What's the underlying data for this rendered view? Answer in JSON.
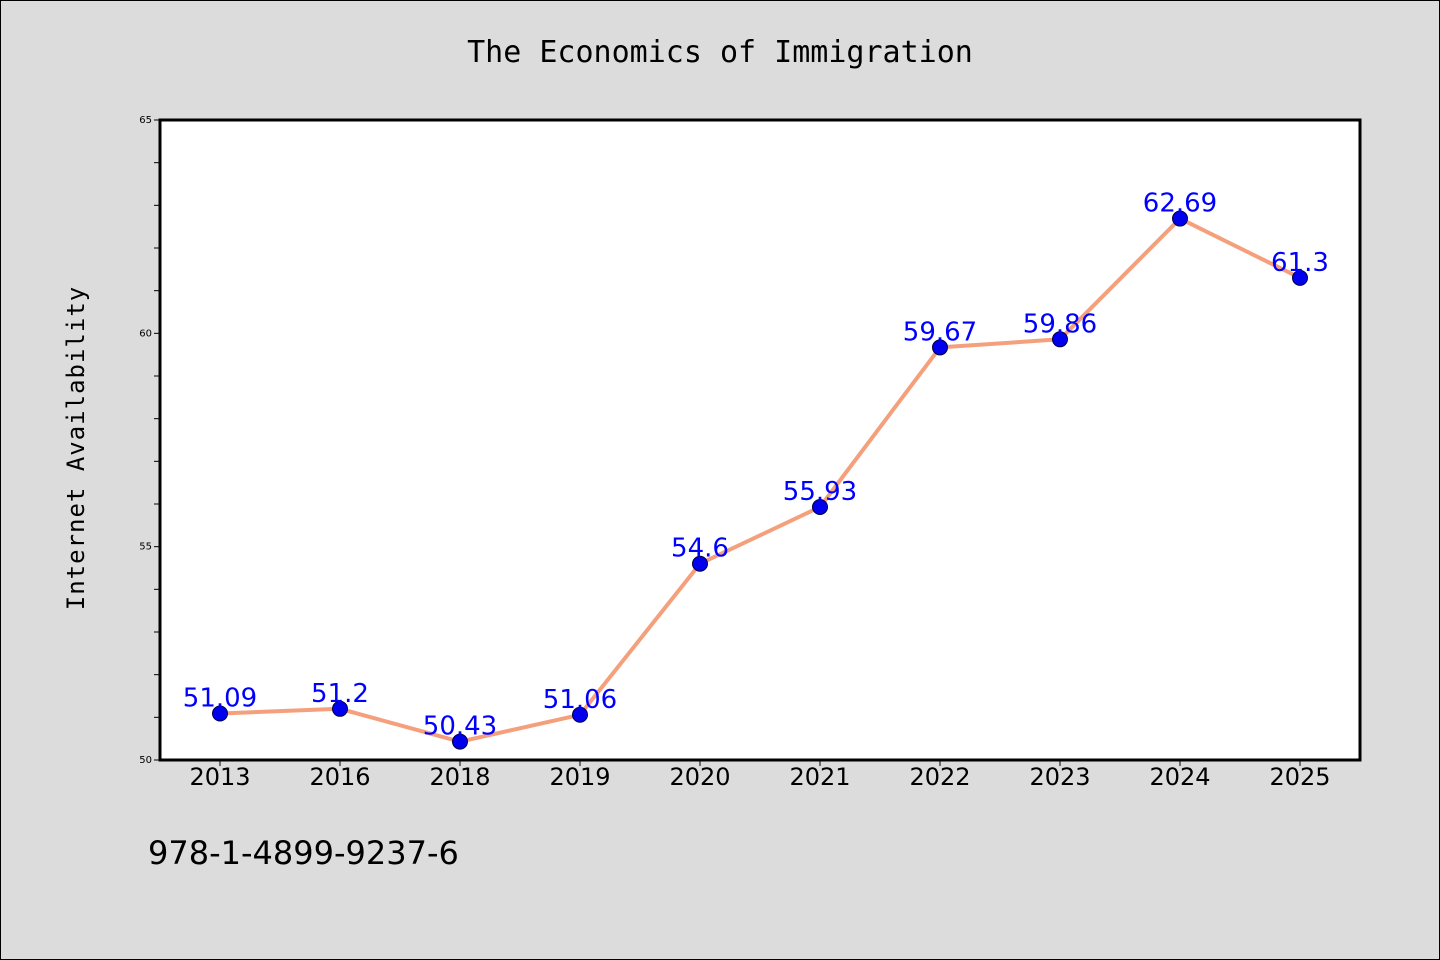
{
  "chart_data": {
    "type": "line",
    "title": "The Economics of Immigration",
    "xlabel": "",
    "ylabel": "Internet Availability",
    "categories": [
      "2013",
      "2016",
      "2018",
      "2019",
      "2020",
      "2021",
      "2022",
      "2023",
      "2024",
      "2025"
    ],
    "values": [
      51.09,
      51.2,
      50.43,
      51.06,
      54.6,
      55.93,
      59.67,
      59.86,
      62.69,
      61.3
    ],
    "data_labels": [
      "51.09",
      "51.2",
      "50.43",
      "51.06",
      "54.6",
      "55.93",
      "59.67",
      "59.86",
      "62.69",
      "61.3"
    ],
    "ylim": [
      50,
      65
    ],
    "y_ticks": [
      "50",
      "55",
      "60",
      "65"
    ],
    "y_minor_step": 1,
    "grid": false,
    "legend": "none",
    "colors": {
      "line": "#f4a07c",
      "marker": "#0000ee",
      "marker_edge": "#000044",
      "data_label": "#0000ff",
      "plot_background": "#ffffff",
      "figure_background": "#dcdcdc",
      "frame": "#000000"
    }
  },
  "footer": {
    "isbn": "978-1-4899-9237-6"
  }
}
